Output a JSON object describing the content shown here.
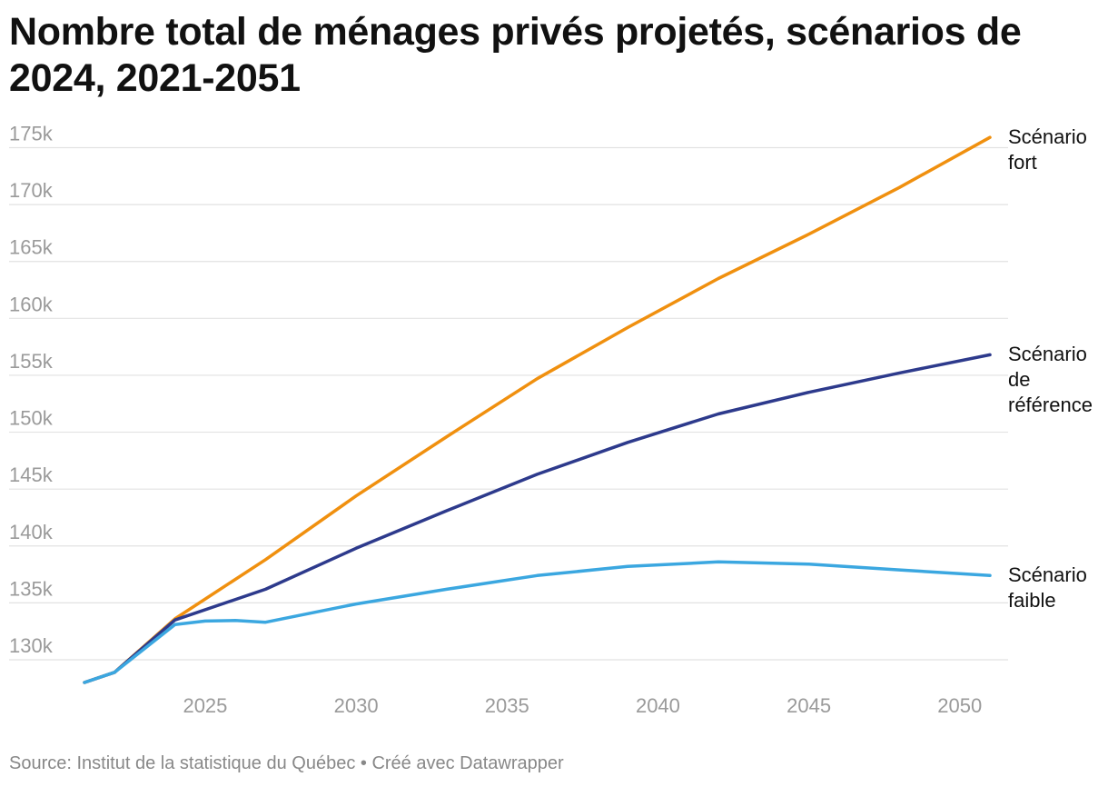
{
  "chart_data": {
    "type": "line",
    "title": "Nombre total de ménages privés projetés, scénarios de 2024, 2021-2051",
    "xlabel": "",
    "ylabel": "",
    "xlim": [
      2021,
      2051
    ],
    "ylim": [
      127000,
      176000
    ],
    "x_ticks": [
      2025,
      2030,
      2035,
      2040,
      2045,
      2050
    ],
    "y_ticks": [
      130000,
      135000,
      140000,
      145000,
      150000,
      155000,
      160000,
      165000,
      170000,
      175000
    ],
    "y_tick_labels": [
      "130k",
      "135k",
      "140k",
      "145k",
      "150k",
      "155k",
      "160k",
      "165k",
      "170k",
      "175k"
    ],
    "grid": "horizontal",
    "legend": "direct labels at line ends",
    "series": [
      {
        "name": "Scénario fort",
        "label_lines": [
          "Scénario",
          "fort"
        ],
        "color": "#f0900f",
        "x": [
          2021,
          2022,
          2024,
          2027,
          2030,
          2033,
          2036,
          2039,
          2042,
          2045,
          2048,
          2051
        ],
        "values": [
          128000,
          128900,
          133600,
          138800,
          144400,
          149600,
          154700,
          159200,
          163500,
          167400,
          171500,
          175900
        ]
      },
      {
        "name": "Scénario de référence",
        "label_lines": [
          "Scénario",
          "de",
          "référence"
        ],
        "color": "#2d3a8c",
        "x": [
          2021,
          2022,
          2024,
          2027,
          2030,
          2033,
          2036,
          2039,
          2042,
          2045,
          2048,
          2051
        ],
        "values": [
          128000,
          128900,
          133500,
          136200,
          139800,
          143100,
          146300,
          149100,
          151600,
          153500,
          155200,
          156800
        ]
      },
      {
        "name": "Scénario faible",
        "label_lines": [
          "Scénario",
          "faible"
        ],
        "color": "#3ba7e0",
        "x": [
          2021,
          2022,
          2024,
          2025,
          2026,
          2027,
          2030,
          2033,
          2036,
          2039,
          2042,
          2045,
          2048,
          2051
        ],
        "values": [
          128000,
          128900,
          133100,
          133400,
          133450,
          133300,
          134900,
          136200,
          137400,
          138200,
          138600,
          138400,
          137900,
          137400
        ]
      }
    ]
  },
  "footer": "Source: Institut de la statistique du Québec • Créé avec Datawrapper"
}
